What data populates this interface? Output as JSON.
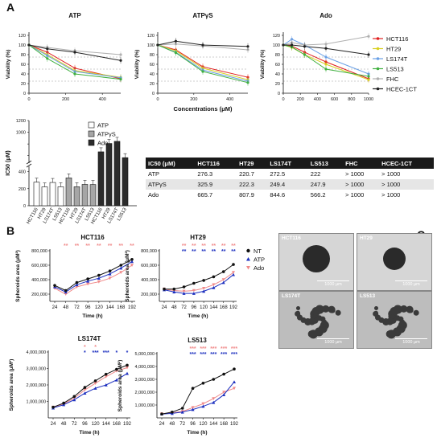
{
  "panel_letters": {
    "a": "A",
    "b": "B",
    "c": "C"
  },
  "colors": {
    "HCT116": "#e02020",
    "HT29": "#d8d020",
    "LS174T": "#6aa0e6",
    "LS513": "#40b040",
    "FHC": "#b0b0b0",
    "HCEC-1CT": "#222222",
    "NT": "#111111",
    "ATP": "#1c2fbf",
    "Ado": "#f08a8a"
  },
  "viability": {
    "ylabel": "Viability (%)",
    "xlabel": "Concentrations (μM)",
    "yticks": [
      "0",
      "20",
      "40",
      "60",
      "80",
      "100",
      "120"
    ],
    "legend": [
      "HCT116",
      "HT29",
      "LS174T",
      "LS513",
      "FHC",
      "HCEC-1CT"
    ],
    "charts": [
      {
        "title": "ATP",
        "xticks": [
          "0",
          "200",
          "400"
        ],
        "xmax": 500,
        "x": [
          0,
          100,
          250,
          500
        ],
        "series": {
          "HCT116": [
            100,
            85,
            52,
            30
          ],
          "HT29": [
            100,
            80,
            47,
            33
          ],
          "LS174T": [
            100,
            78,
            45,
            32
          ],
          "LS513": [
            100,
            72,
            40,
            29
          ],
          "FHC": [
            100,
            95,
            88,
            80
          ],
          "HCEC-1CT": [
            100,
            92,
            85,
            68
          ]
        }
      },
      {
        "title": "ATPγS",
        "xticks": [
          "0",
          "200",
          "400"
        ],
        "xmax": 500,
        "x": [
          0,
          100,
          250,
          500
        ],
        "series": {
          "HCT116": [
            100,
            90,
            55,
            33
          ],
          "HT29": [
            100,
            88,
            52,
            28
          ],
          "LS174T": [
            100,
            85,
            48,
            25
          ],
          "LS513": [
            100,
            84,
            45,
            22
          ],
          "FHC": [
            100,
            102,
            98,
            90
          ],
          "HCEC-1CT": [
            100,
            108,
            100,
            97
          ]
        }
      },
      {
        "title": "Ado",
        "xticks": [
          "0",
          "200",
          "400",
          "600",
          "800",
          "1000"
        ],
        "xmax": 1000,
        "x": [
          0,
          100,
          250,
          500,
          1000
        ],
        "series": {
          "HCT116": [
            100,
            98,
            85,
            65,
            30
          ],
          "HT29": [
            100,
            95,
            80,
            60,
            28
          ],
          "LS174T": [
            100,
            112,
            100,
            75,
            40
          ],
          "LS513": [
            100,
            96,
            80,
            50,
            35
          ],
          "FHC": [
            100,
            105,
            100,
            102,
            118
          ],
          "HCEC-1CT": [
            100,
            100,
            97,
            93,
            80
          ]
        }
      }
    ]
  },
  "ic50_bar": {
    "ylabel": "IC50 (μM)",
    "yticks_low": [
      "0",
      "200",
      "400"
    ],
    "yticks_high": [
      "1000",
      "1200"
    ],
    "categories": [
      "HCT116",
      "HT29",
      "LS174T",
      "LS513"
    ],
    "legend": [
      "ATP",
      "ATPγS",
      "Ado"
    ],
    "series": {
      "ATP": [
        276.3,
        220.7,
        272.5,
        222
      ],
      "ATPγS": [
        325.9,
        222.3,
        249.4,
        247.9
      ],
      "Ado": [
        665.7,
        807.9,
        844.6,
        566.2
      ]
    }
  },
  "ic50_table": {
    "headers": [
      "IC50 (μM)",
      "HCT116",
      "HT29",
      "LS174T",
      "LS513",
      "FHC",
      "HCEC-1CT"
    ],
    "rows": [
      [
        "ATP",
        "276.3",
        "220.7",
        "272.5",
        "222",
        "> 1000",
        "> 1000"
      ],
      [
        "ATPγS",
        "325.9",
        "222.3",
        "249.4",
        "247.9",
        "> 1000",
        "> 1000"
      ],
      [
        "Ado",
        "665.7",
        "807.9",
        "844.6",
        "566.2",
        "> 1000",
        "> 1000"
      ]
    ]
  },
  "spheroid": {
    "ylabel": "Spheroids area (μM²)",
    "xlabel": "Time (h)",
    "xticks": [
      "24",
      "48",
      "72",
      "96",
      "120",
      "144",
      "168",
      "192"
    ],
    "legend": [
      "NT",
      "ATP",
      "Ado"
    ],
    "charts": [
      {
        "title": "HCT116",
        "ymin": 100000,
        "ymax": 800000,
        "yticks": [
          "200,000",
          "400,000",
          "600,000",
          "800,000"
        ],
        "NT": [
          320000,
          250000,
          360000,
          410000,
          460000,
          520000,
          600000,
          680000
        ],
        "ATP": [
          300000,
          230000,
          330000,
          380000,
          420000,
          480000,
          560000,
          650000
        ],
        "Ado": [
          280000,
          200000,
          300000,
          340000,
          370000,
          420000,
          500000,
          600000
        ],
        "stars_ado": [
          "",
          "**",
          "**",
          "**",
          "**",
          "**",
          "**",
          "**"
        ],
        "stars_atp": [
          "",
          "",
          "",
          "",
          "",
          "",
          "",
          ""
        ]
      },
      {
        "title": "HT29",
        "ymin": 100000,
        "ymax": 800000,
        "yticks": [
          "200,000",
          "400,000",
          "600,000",
          "800,000"
        ],
        "NT": [
          270000,
          270000,
          300000,
          350000,
          390000,
          440000,
          510000,
          610000
        ],
        "ATP": [
          260000,
          230000,
          210000,
          210000,
          240000,
          290000,
          360000,
          470000
        ],
        "Ado": [
          270000,
          250000,
          240000,
          250000,
          280000,
          330000,
          400000,
          500000
        ],
        "stars_ado": [
          "",
          "",
          "**",
          "**",
          "**",
          "**",
          "**",
          "**"
        ],
        "stars_atp": [
          "",
          "",
          "**",
          "**",
          "**",
          "**",
          "**",
          "**"
        ]
      },
      {
        "title": "LS174T",
        "ymin": 0,
        "ymax": 4000000,
        "yticks": [
          "1,000,000",
          "2,000,000",
          "3,000,000",
          "4,000,000"
        ],
        "NT": [
          650000,
          900000,
          1300000,
          1850000,
          2250000,
          2650000,
          2950000,
          3200000
        ],
        "ATP": [
          600000,
          800000,
          1100000,
          1500000,
          1800000,
          2000000,
          2300000,
          2700000
        ],
        "Ado": [
          650000,
          850000,
          1200000,
          1700000,
          2100000,
          2500000,
          2850000,
          3050000
        ],
        "stars_ado": [
          "",
          "",
          "",
          "*",
          "*",
          "",
          "",
          ""
        ],
        "stars_atp": [
          "",
          "",
          "",
          "*",
          "***",
          "***",
          "*",
          "*"
        ]
      },
      {
        "title": "LS513",
        "ymin": 0,
        "ymax": 5000000,
        "yticks": [
          "1,000,000",
          "2,000,000",
          "3,000,000",
          "4,000,000",
          "5,000,000"
        ],
        "NT": [
          300000,
          450000,
          750000,
          2300000,
          2700000,
          3000000,
          3400000,
          3800000
        ],
        "ATP": [
          300000,
          350000,
          450000,
          650000,
          900000,
          1200000,
          1800000,
          2800000
        ],
        "Ado": [
          320000,
          400000,
          500000,
          800000,
          1100000,
          1500000,
          2000000,
          2300000
        ],
        "stars_ado": [
          "",
          "",
          "",
          "***",
          "***",
          "***",
          "***",
          "***"
        ],
        "stars_atp": [
          "",
          "",
          "",
          "***",
          "***",
          "***",
          "***",
          "***"
        ]
      }
    ]
  },
  "micrographs": [
    {
      "label": "HCT116",
      "scale": "1000 μm"
    },
    {
      "label": "HT29",
      "scale": "1000 μm"
    },
    {
      "label": "LS174T",
      "scale": "1000 μm"
    },
    {
      "label": "LS513",
      "scale": "1000 μm"
    }
  ]
}
